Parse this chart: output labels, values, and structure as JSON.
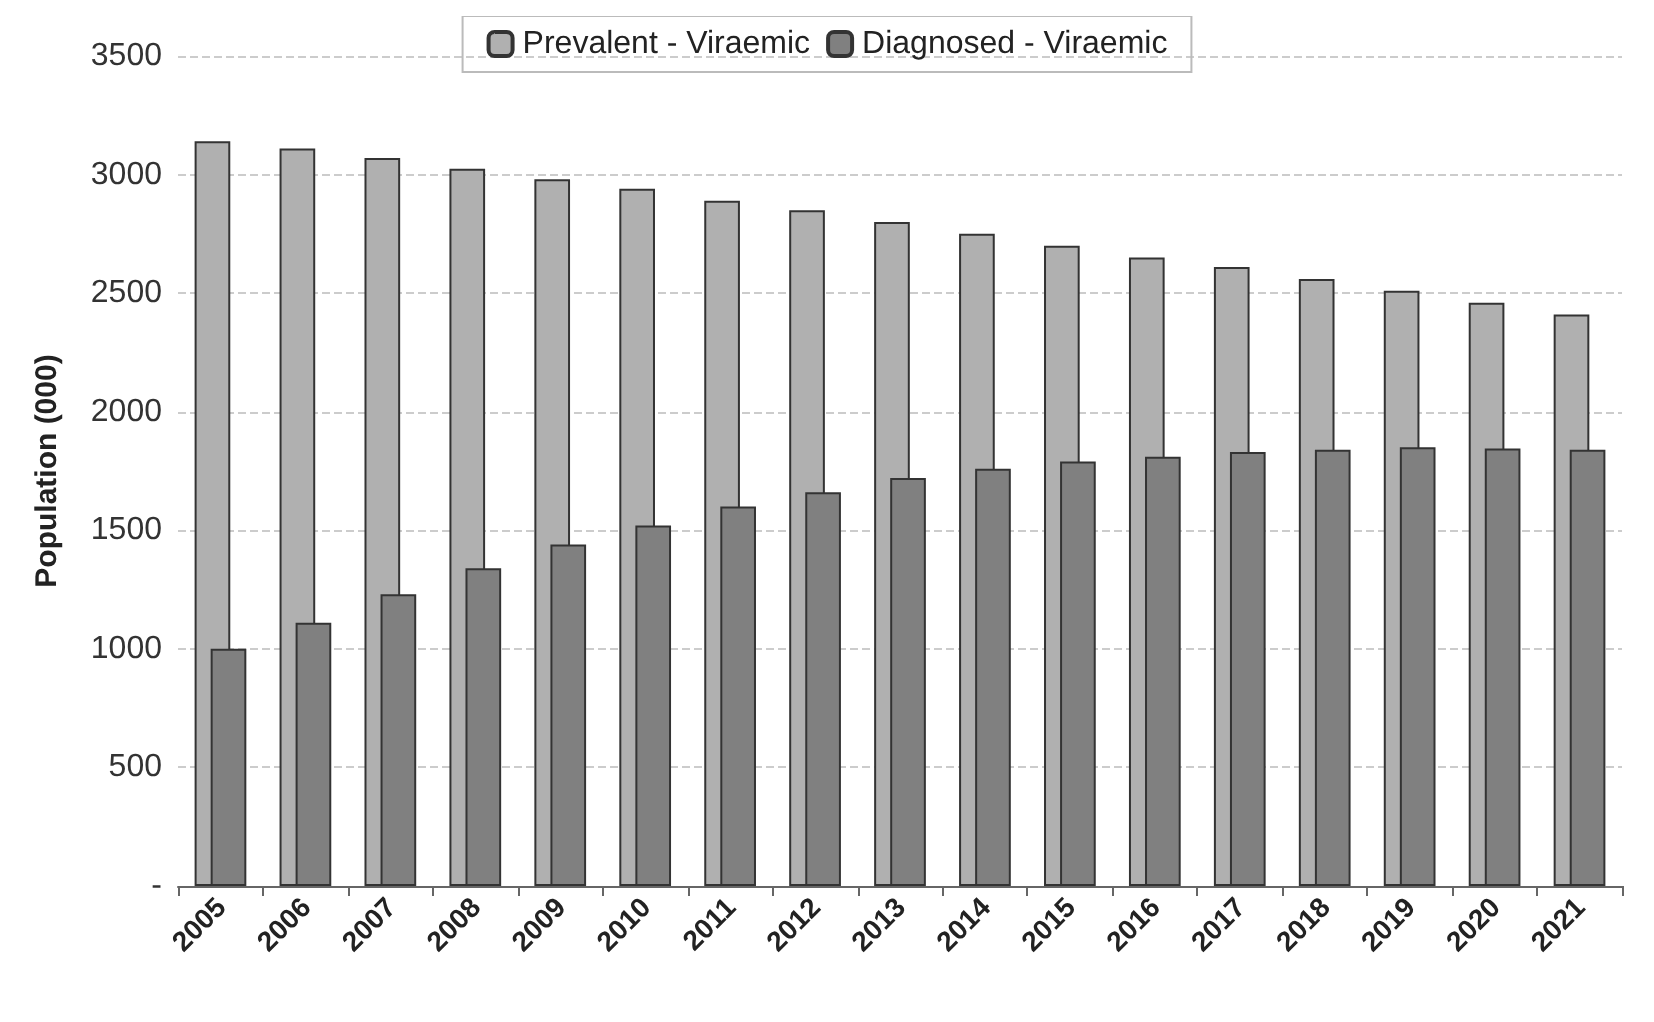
{
  "chart_data": {
    "type": "bar",
    "ylabel": "Population (000)",
    "categories": [
      "2005",
      "2006",
      "2007",
      "2008",
      "2009",
      "2010",
      "2011",
      "2012",
      "2013",
      "2014",
      "2015",
      "2016",
      "2017",
      "2018",
      "2019",
      "2020",
      "2021"
    ],
    "series": [
      {
        "name": "Prevalent - Viraemic",
        "color": "#b0b0b0",
        "values": [
          3140,
          3110,
          3070,
          3025,
          2980,
          2940,
          2890,
          2850,
          2800,
          2750,
          2700,
          2650,
          2610,
          2560,
          2510,
          2460,
          2410
        ]
      },
      {
        "name": "Diagnosed - Viraemic",
        "color": "#808080",
        "values": [
          1000,
          1110,
          1230,
          1340,
          1440,
          1520,
          1600,
          1660,
          1720,
          1760,
          1790,
          1810,
          1830,
          1840,
          1850,
          1845,
          1840
        ]
      }
    ],
    "ylim": [
      0,
      3500
    ],
    "yticks": [
      {
        "value": 0,
        "label": "-"
      },
      500,
      1000,
      1500,
      2000,
      2500,
      3000,
      3500
    ],
    "grid": "y",
    "legend": "top"
  }
}
